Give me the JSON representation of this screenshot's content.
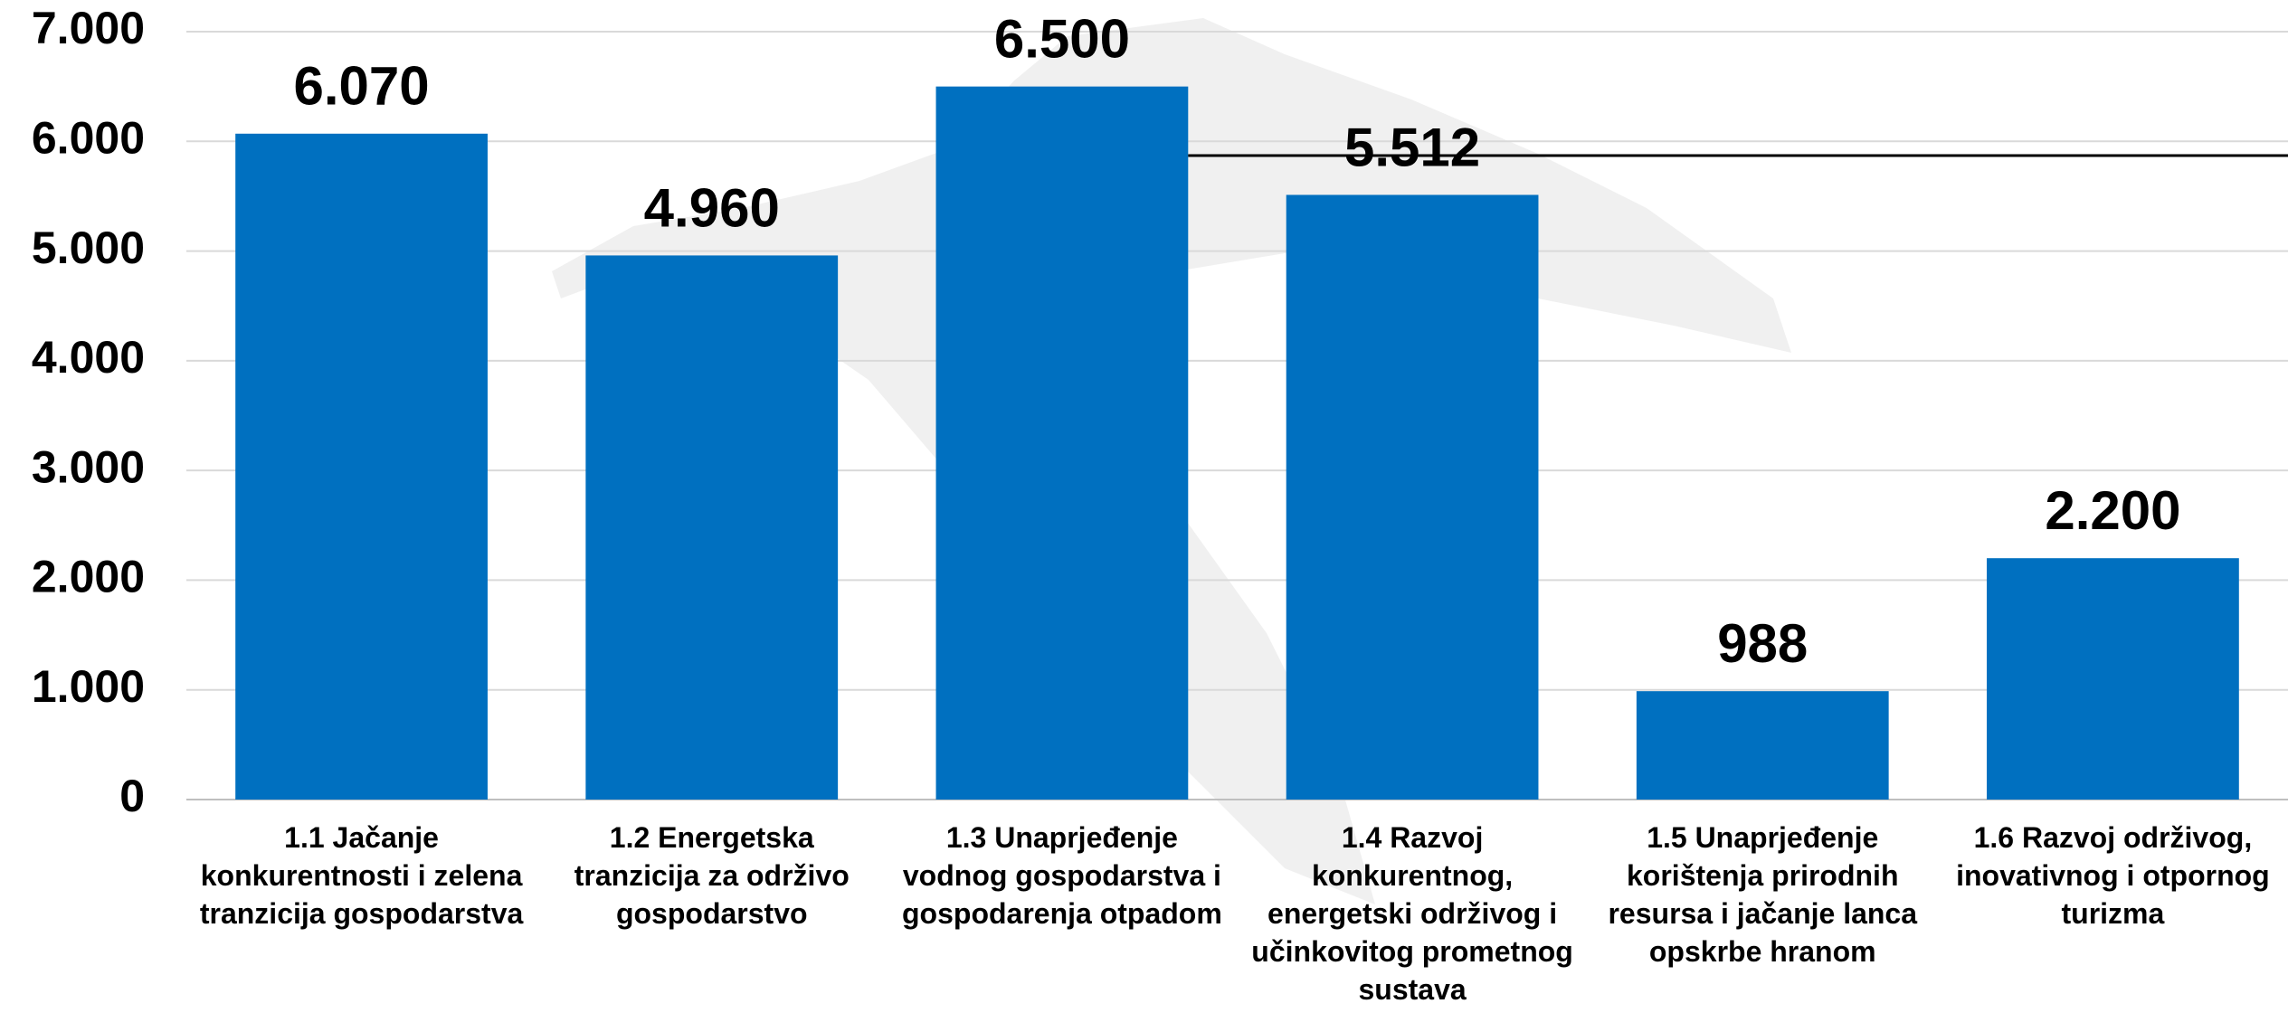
{
  "chart_data": {
    "type": "bar",
    "categories": [
      "1.1 Jačanje konkurentnosti i zelena tranzicija gospodarstva",
      "1.2 Energetska tranzicija za održivo gospodarstvo",
      "1.3 Unaprjeđenje vodnog gospodarstva i gospodarenja otpadom",
      "1.4 Razvoj konkurentnog, energetski održivog i učinkovitog prometnog sustava",
      "1.5 Unaprjeđenje korištenja prirodnih resursa i jačanje lanca opskrbe hranom",
      "1.6 Razvoj održivog, inovativnog i otpornog turizma"
    ],
    "values": [
      6070,
      4960,
      6500,
      5512,
      988,
      2200
    ],
    "value_labels": [
      "6.070",
      "4.960",
      "6.500",
      "5.512",
      "988",
      "2.200"
    ],
    "color": "#0070c0",
    "ylim": [
      0,
      7000
    ],
    "yticks": [
      0,
      {
        "value": 1000,
        "label": "1.000"
      },
      {
        "value": 2000,
        "label": "2.000"
      },
      {
        "value": 3000,
        "label": "3.000"
      },
      {
        "value": 4000,
        "label": "4.000"
      },
      {
        "value": 5000,
        "label": "5.000"
      },
      {
        "value": 6000,
        "label": "6.000"
      },
      {
        "value": 7000,
        "label": "7.000"
      }
    ],
    "grid": true,
    "reference_line": 5870
  }
}
